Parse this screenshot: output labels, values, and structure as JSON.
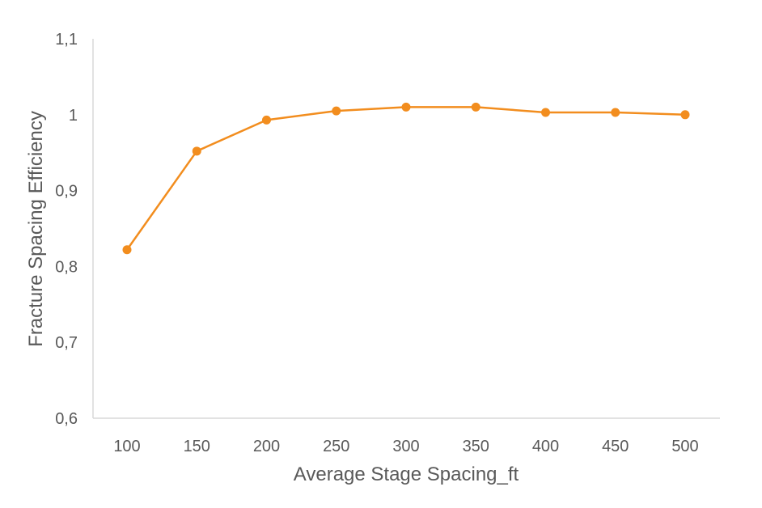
{
  "chart_data": {
    "type": "line",
    "title": "",
    "xlabel": "Average Stage Spacing_ft",
    "ylabel": "Fracture Spacing Efficiency",
    "x": [
      100,
      150,
      200,
      250,
      300,
      350,
      400,
      450,
      500
    ],
    "series": [
      {
        "values": [
          0.822,
          0.952,
          0.993,
          1.005,
          1.01,
          1.01,
          1.003,
          1.003,
          1.0
        ],
        "color": "#f28d1e"
      }
    ],
    "ylim": [
      0.6,
      1.1
    ],
    "yticks": [
      "0,6",
      "0,7",
      "0,8",
      "0,9",
      "1",
      "1,1"
    ],
    "xticks": [
      "100",
      "150",
      "200",
      "250",
      "300",
      "350",
      "400",
      "450",
      "500"
    ],
    "grid": false,
    "legend": "none",
    "marker": "circle"
  }
}
